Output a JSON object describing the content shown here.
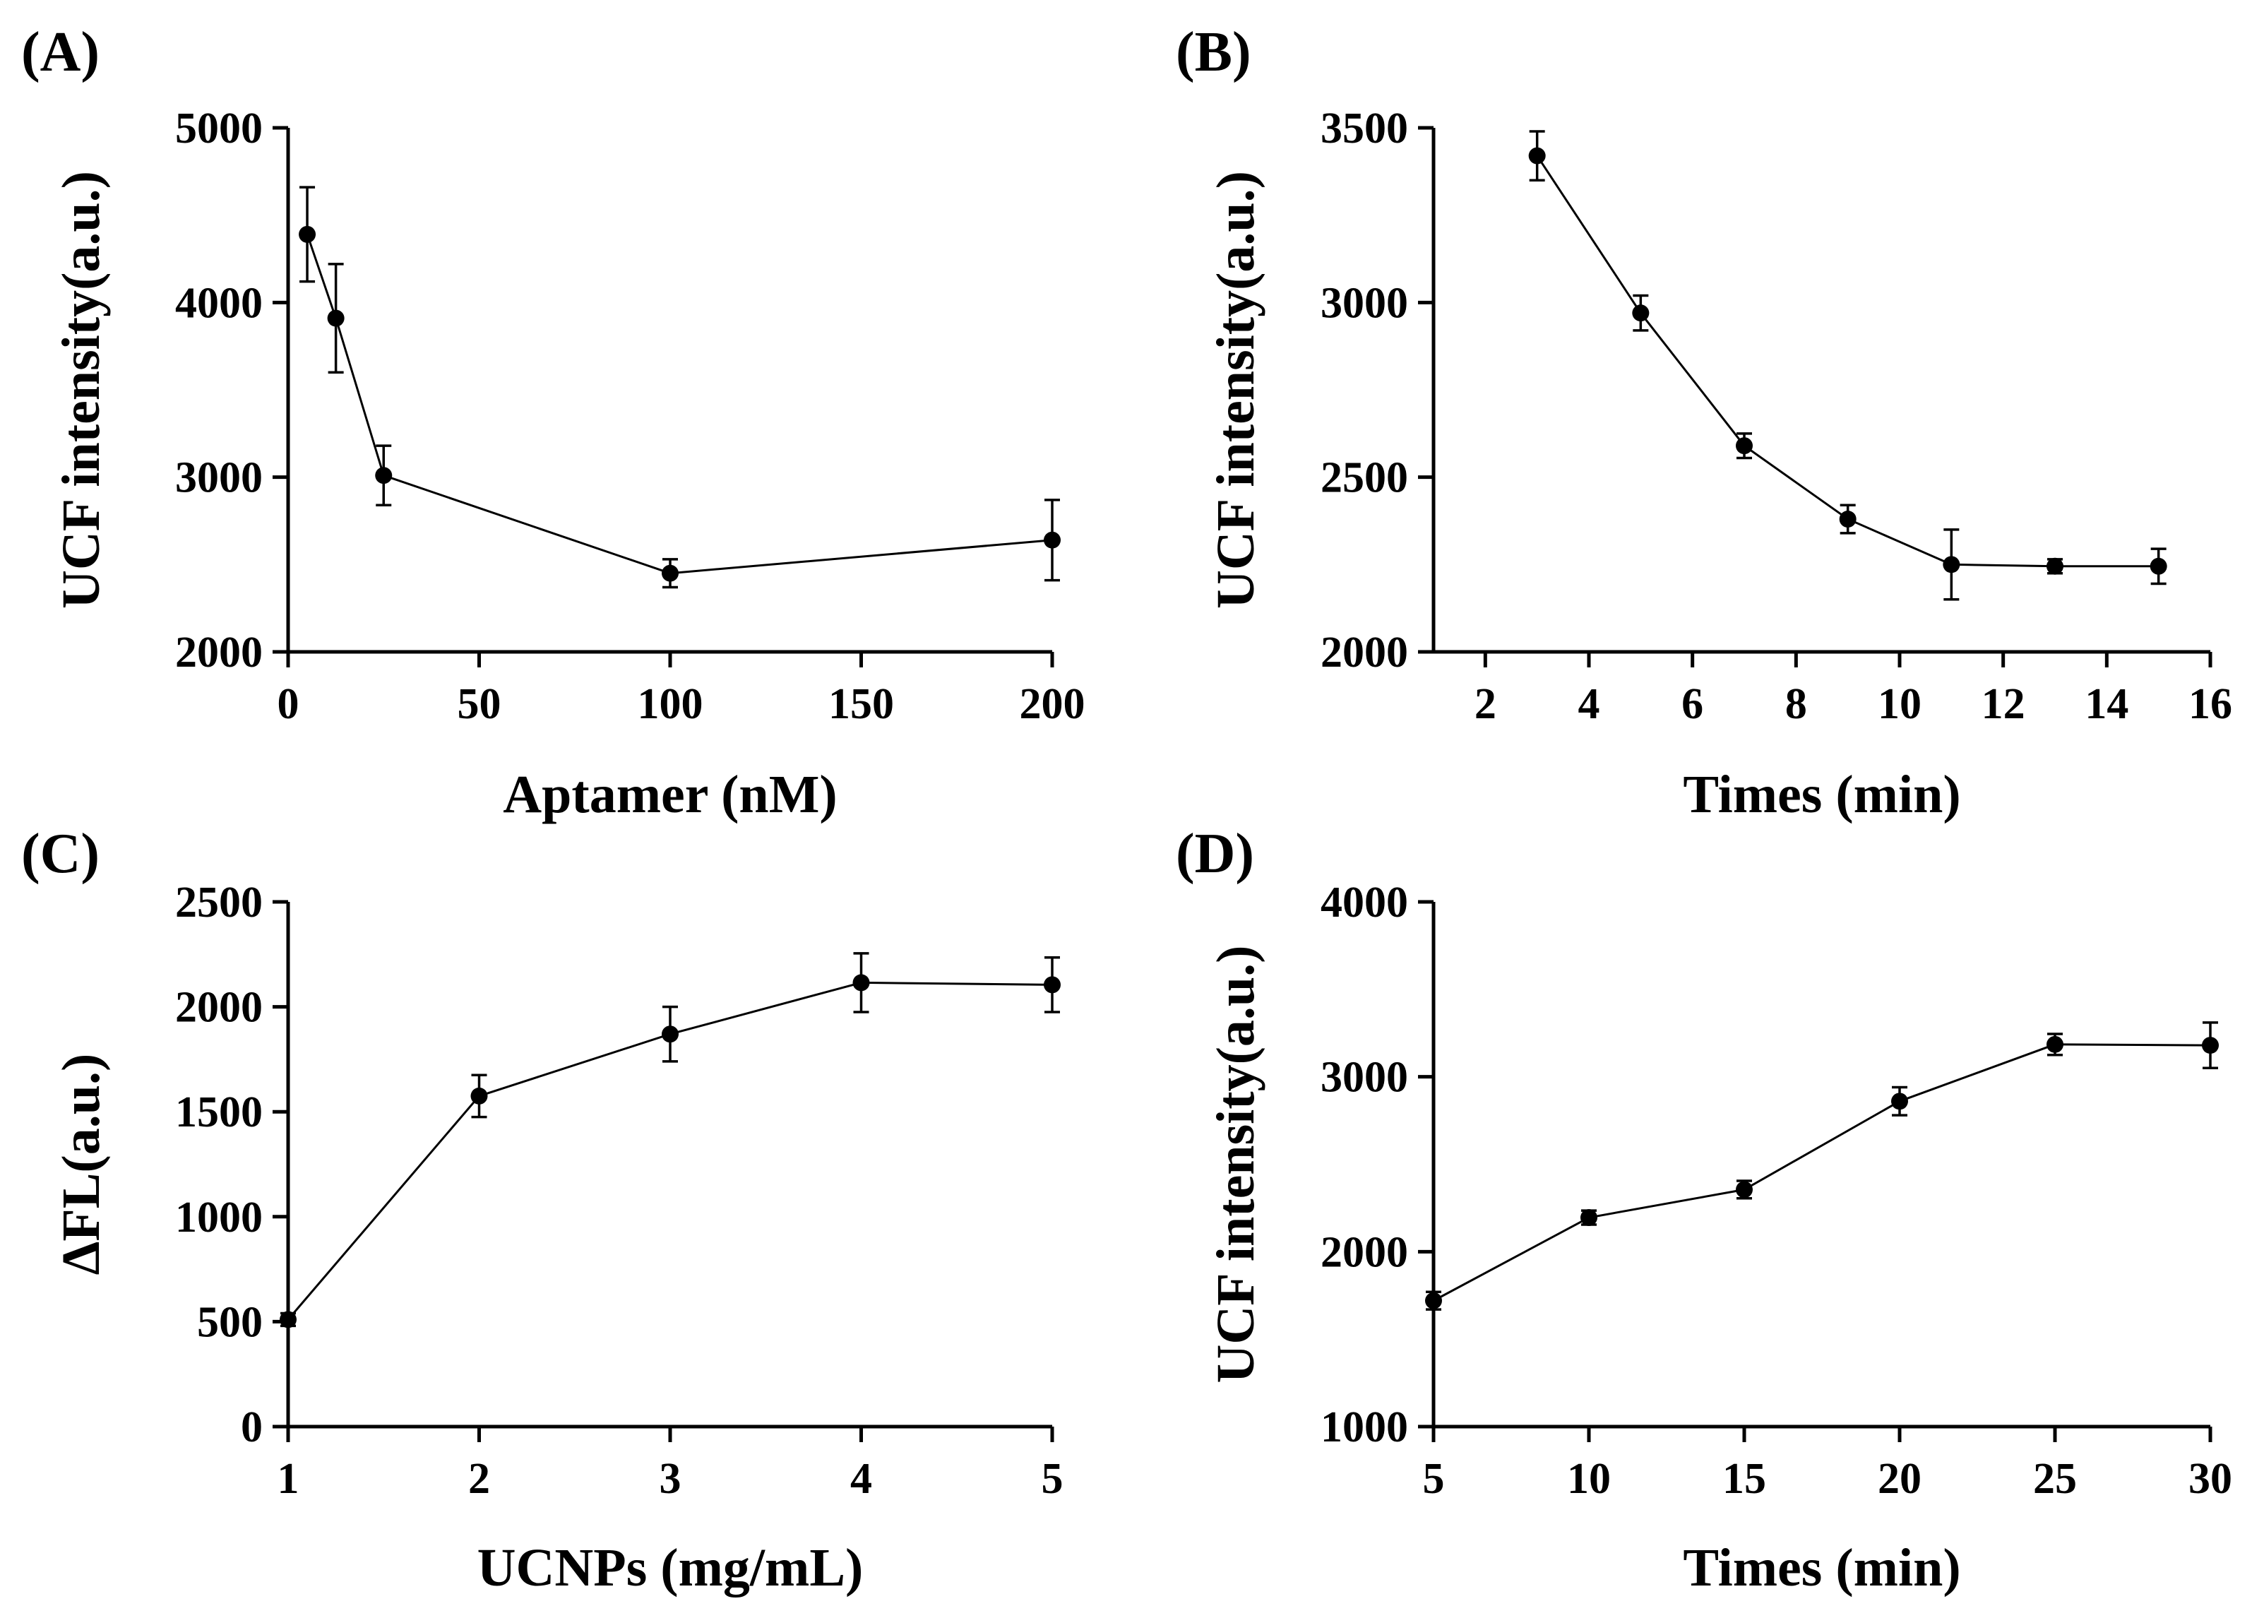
{
  "figure": {
    "title": ""
  },
  "chart_data": [
    {
      "type": "line",
      "panel": "(A)",
      "title": "",
      "xlabel": "Aptamer (nM)",
      "ylabel": "UCF intensity(a.u.)",
      "xlim": [
        0,
        200
      ],
      "ylim": [
        2000,
        5000
      ],
      "xticks": [
        0,
        50,
        100,
        150,
        200
      ],
      "yticks": [
        2000,
        3000,
        4000,
        5000
      ],
      "grid": false,
      "series": [
        {
          "name": "UCF intensity",
          "x": [
            5,
            12.5,
            25,
            100,
            200
          ],
          "y": [
            4390,
            3910,
            3010,
            2450,
            2640
          ],
          "err": [
            270,
            310,
            170,
            80,
            230
          ]
        }
      ]
    },
    {
      "type": "line",
      "panel": "(B)",
      "title": "",
      "xlabel": "Times (min)",
      "ylabel": "UCF intensity(a.u.)",
      "xlim": [
        1,
        16
      ],
      "ylim": [
        2000,
        3500
      ],
      "xticks": [
        2,
        4,
        6,
        8,
        10,
        12,
        14,
        16
      ],
      "yticks": [
        2000,
        2500,
        3000,
        3500
      ],
      "grid": false,
      "series": [
        {
          "name": "UCF intensity",
          "x": [
            3,
            5,
            7,
            9,
            11,
            13,
            15
          ],
          "y": [
            3420,
            2970,
            2590,
            2380,
            2250,
            2245,
            2245
          ],
          "err": [
            70,
            50,
            35,
            40,
            100,
            20,
            50
          ]
        }
      ]
    },
    {
      "type": "line",
      "panel": "(C)",
      "title": "",
      "xlabel": "UCNPs (mg/mL)",
      "ylabel": "ΔFL(a.u.)",
      "xlim": [
        1,
        5
      ],
      "ylim": [
        0,
        2500
      ],
      "xticks": [
        1,
        2,
        3,
        4,
        5
      ],
      "yticks": [
        0,
        500,
        1000,
        1500,
        2000,
        2500
      ],
      "grid": false,
      "series": [
        {
          "name": "ΔFL",
          "x": [
            1,
            2,
            3,
            4,
            5
          ],
          "y": [
            510,
            1575,
            1870,
            2115,
            2105
          ],
          "err": [
            30,
            100,
            130,
            140,
            130
          ]
        }
      ]
    },
    {
      "type": "line",
      "panel": "(D)",
      "title": "",
      "xlabel": "Times (min)",
      "ylabel": "UCF intensity(a.u.)",
      "xlim": [
        5,
        30
      ],
      "ylim": [
        1000,
        4000
      ],
      "xticks": [
        5,
        10,
        15,
        20,
        25,
        30
      ],
      "yticks": [
        1000,
        2000,
        3000,
        4000
      ],
      "grid": false,
      "series": [
        {
          "name": "UCF intensity",
          "x": [
            5,
            10,
            15,
            20,
            25,
            30
          ],
          "y": [
            1720,
            2195,
            2355,
            2860,
            3185,
            3180
          ],
          "err": [
            50,
            40,
            50,
            80,
            60,
            130
          ]
        }
      ]
    }
  ]
}
